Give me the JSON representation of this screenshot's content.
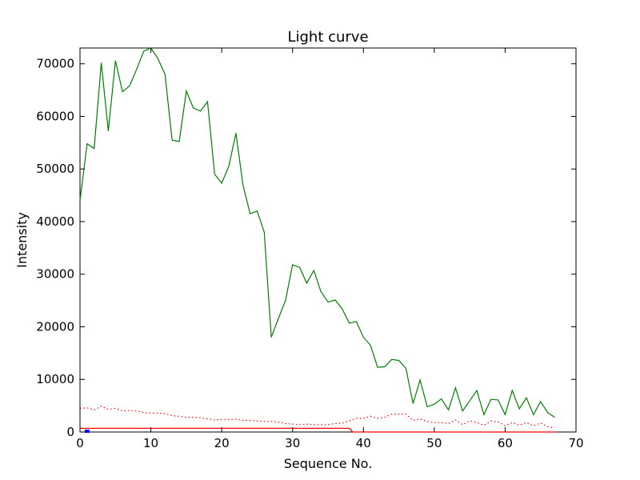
{
  "chart_data": {
    "type": "line",
    "title": "Light curve",
    "xlabel": "Sequence No.",
    "ylabel": "Intensity",
    "xlim": [
      0,
      70
    ],
    "ylim": [
      0,
      73000
    ],
    "x_ticks": [
      0,
      10,
      20,
      30,
      40,
      50,
      60,
      70
    ],
    "y_ticks": [
      0,
      10000,
      20000,
      30000,
      40000,
      50000,
      60000,
      70000
    ],
    "x_tick_labels": [
      "0",
      "10",
      "20",
      "30",
      "40",
      "50",
      "60",
      "70"
    ],
    "y_tick_labels": [
      "0",
      "10000",
      "20000",
      "30000",
      "40000",
      "50000",
      "60000",
      "70000"
    ],
    "grid": false,
    "legend": "none",
    "series": [
      {
        "color": "#008000",
        "style": "solid",
        "x": [
          0,
          1,
          2,
          3,
          4,
          5,
          6,
          7,
          8,
          9,
          10,
          11,
          12,
          13,
          14,
          15,
          16,
          17,
          18,
          19,
          20,
          21,
          22,
          23,
          24,
          25,
          26,
          27,
          28,
          29,
          30,
          31,
          32,
          33,
          34,
          35,
          36,
          37,
          38,
          39,
          40,
          41,
          42,
          43,
          44,
          45,
          46,
          47,
          48,
          49,
          50,
          51,
          52,
          53,
          54,
          55,
          56,
          57,
          58,
          59,
          60,
          61,
          62,
          63,
          64,
          65,
          66,
          67
        ],
        "y": [
          44000,
          54800,
          53900,
          70200,
          57200,
          70600,
          64700,
          65800,
          69000,
          72400,
          73000,
          71000,
          68000,
          55500,
          55200,
          64800,
          61600,
          61000,
          62800,
          49000,
          47300,
          50500,
          56800,
          47000,
          41500,
          42000,
          38000,
          18000,
          21600,
          25000,
          31800,
          31300,
          28300,
          30700,
          26700,
          24700,
          25100,
          23400,
          20700,
          21000,
          18000,
          16500,
          12300,
          12400,
          13800,
          13600,
          12100,
          5400,
          9900,
          4800,
          5300,
          6300,
          4200,
          8400,
          4000,
          5900,
          7900,
          3300,
          6200,
          6100,
          3300,
          7900,
          4400,
          6500,
          3300,
          5800,
          3700,
          2800
        ]
      },
      {
        "color": "#ff0000",
        "style": "dotted",
        "x": [
          0,
          1,
          2,
          3,
          4,
          5,
          6,
          7,
          8,
          9,
          10,
          11,
          12,
          13,
          14,
          15,
          16,
          17,
          18,
          19,
          20,
          21,
          22,
          23,
          24,
          25,
          26,
          27,
          28,
          29,
          30,
          31,
          32,
          33,
          34,
          35,
          36,
          37,
          38,
          39,
          40,
          41,
          42,
          43,
          44,
          45,
          46,
          47,
          48,
          49,
          50,
          51,
          52,
          53,
          54,
          55,
          56,
          57,
          58,
          59,
          60,
          61,
          62,
          63,
          64,
          65,
          66,
          67
        ],
        "y": [
          4500,
          4600,
          4200,
          4900,
          4300,
          4500,
          4000,
          4100,
          4000,
          3700,
          3600,
          3600,
          3500,
          3100,
          3000,
          2800,
          2800,
          2700,
          2500,
          2300,
          2400,
          2400,
          2400,
          2200,
          2200,
          2100,
          2000,
          2000,
          1900,
          1600,
          1500,
          1400,
          1500,
          1400,
          1400,
          1400,
          1600,
          1700,
          2100,
          2600,
          2600,
          3000,
          2600,
          2800,
          3400,
          3400,
          3400,
          2200,
          2500,
          2000,
          1800,
          1800,
          1600,
          2300,
          1400,
          2100,
          1800,
          1300,
          2100,
          1900,
          1200,
          1800,
          1300,
          1800,
          1200,
          1700,
          1000,
          800
        ]
      },
      {
        "color": "#ff0000",
        "style": "solid",
        "x": [
          0,
          38,
          38.5,
          67
        ],
        "y": [
          700,
          700,
          0,
          0
        ]
      },
      {
        "color": "#0000ff",
        "style": "marker",
        "x": [
          1
        ],
        "y": [
          0
        ]
      }
    ]
  }
}
